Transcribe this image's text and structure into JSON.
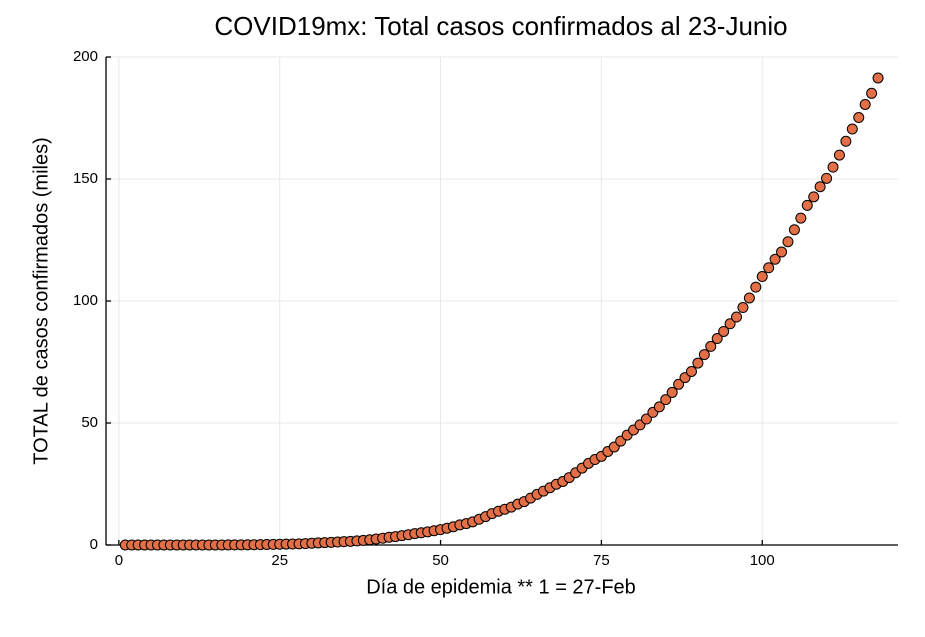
{
  "chart_data": {
    "type": "scatter",
    "title": "COVID19mx: Total casos confirmados al 23-Junio",
    "x_label": "Día de epidemia ** 1 = 27-Feb",
    "y_label": "TOTAL de casos confirmados (miles)",
    "x": [
      1,
      2,
      3,
      4,
      5,
      6,
      7,
      8,
      9,
      10,
      11,
      12,
      13,
      14,
      15,
      16,
      17,
      18,
      19,
      20,
      21,
      22,
      23,
      24,
      25,
      26,
      27,
      28,
      29,
      30,
      31,
      32,
      33,
      34,
      35,
      36,
      37,
      38,
      39,
      40,
      41,
      42,
      43,
      44,
      45,
      46,
      47,
      48,
      49,
      50,
      51,
      52,
      53,
      54,
      55,
      56,
      57,
      58,
      59,
      60,
      61,
      62,
      63,
      64,
      65,
      66,
      67,
      68,
      69,
      70,
      71,
      72,
      73,
      74,
      75,
      76,
      77,
      78,
      79,
      80,
      81,
      82,
      83,
      84,
      85,
      86,
      87,
      88,
      89,
      90,
      91,
      92,
      93,
      94,
      95,
      96,
      97,
      98,
      99,
      100,
      101,
      102,
      103,
      104,
      105,
      106,
      107,
      108,
      109,
      110,
      111,
      112,
      113,
      114,
      115,
      116,
      117,
      118
    ],
    "values": [
      0.001,
      0.002,
      0.004,
      0.005,
      0.005,
      0.005,
      0.005,
      0.005,
      0.006,
      0.007,
      0.007,
      0.007,
      0.007,
      0.008,
      0.012,
      0.016,
      0.026,
      0.041,
      0.053,
      0.082,
      0.118,
      0.164,
      0.203,
      0.251,
      0.316,
      0.367,
      0.405,
      0.475,
      0.585,
      0.717,
      0.848,
      0.993,
      1.094,
      1.215,
      1.378,
      1.51,
      1.688,
      1.89,
      2.143,
      2.439,
      2.785,
      3.181,
      3.441,
      3.844,
      4.219,
      4.661,
      5.014,
      5.399,
      5.847,
      6.297,
      6.875,
      7.497,
      8.261,
      8.772,
      9.501,
      10.544,
      11.633,
      12.872,
      13.842,
      14.677,
      15.529,
      16.752,
      17.799,
      19.224,
      20.739,
      22.088,
      23.471,
      24.905,
      26.025,
      27.634,
      29.616,
      31.522,
      33.46,
      35.022,
      36.327,
      38.324,
      40.186,
      42.595,
      45.032,
      47.144,
      49.219,
      51.633,
      54.346,
      56.594,
      59.567,
      62.527,
      65.856,
      68.62,
      71.105,
      74.56,
      78.023,
      81.4,
      84.627,
      87.512,
      90.664,
      93.435,
      97.326,
      101.238,
      105.68,
      110.026,
      113.619,
      117.103,
      120.102,
      124.301,
      129.184,
      133.974,
      139.196,
      142.69,
      146.837,
      150.264,
      154.863,
      159.793,
      165.455,
      170.485,
      175.202,
      180.545,
      185.122,
      191.41
    ],
    "color": "#e26f46",
    "xlim": [
      -2.0,
      121.1
    ],
    "xticks": [
      0,
      25,
      50,
      75,
      100
    ],
    "ylim": [
      0,
      200
    ],
    "yticks": [
      0,
      50,
      100,
      150,
      200
    ],
    "grid": true
  }
}
